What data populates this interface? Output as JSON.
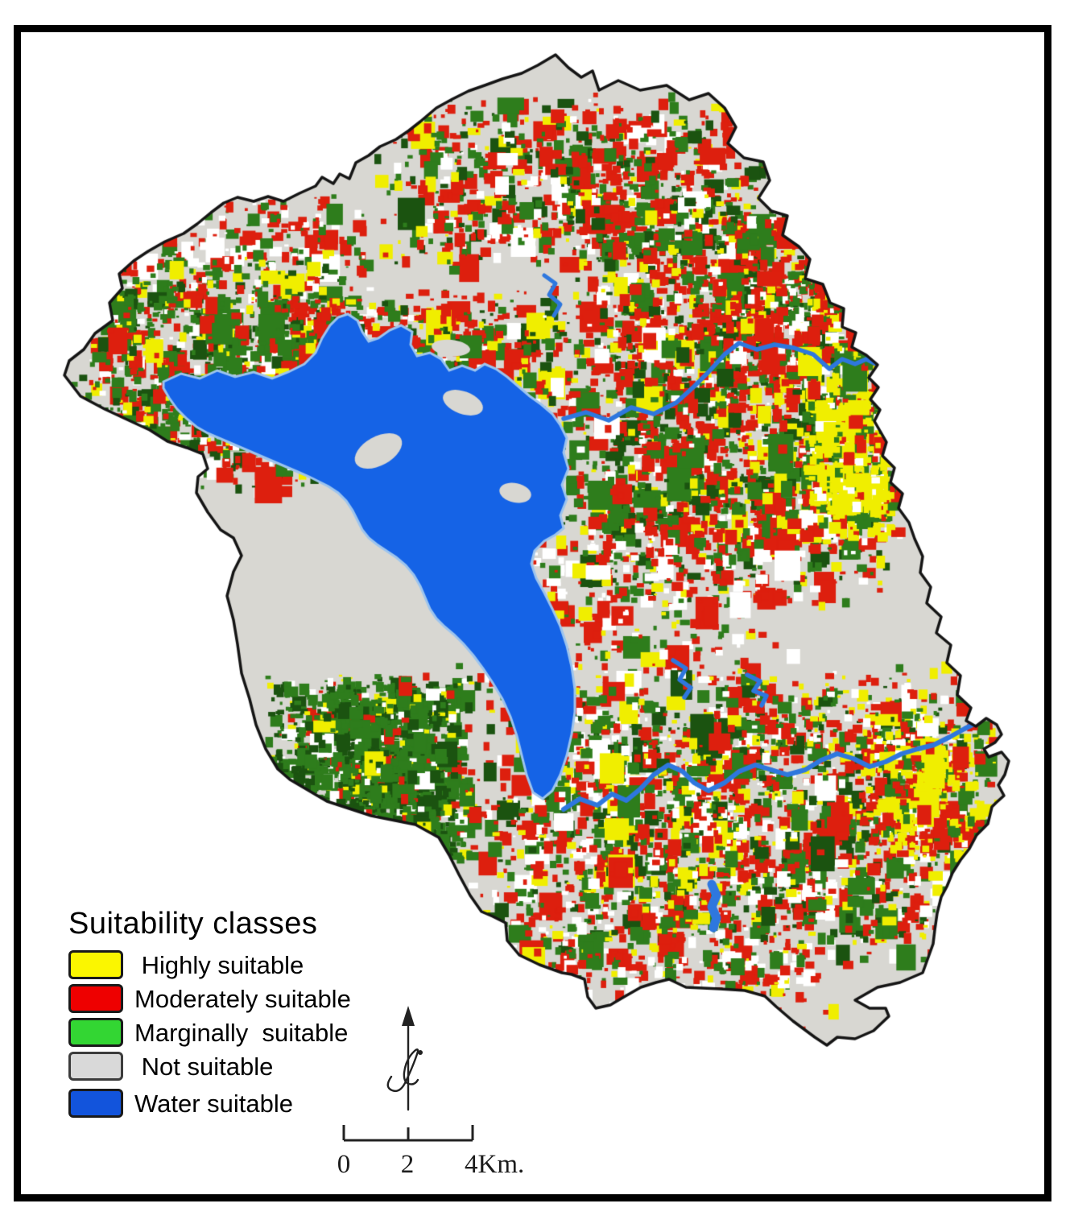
{
  "legend": {
    "title": "Suitability classes",
    "items": [
      {
        "id": "highly",
        "label": " Highly suitable",
        "color": "#FBF600",
        "border": "#1a1a1a"
      },
      {
        "id": "moderately",
        "label": "Moderately suitable",
        "color": "#EE0000",
        "border": "#1a1a1a"
      },
      {
        "id": "marginally",
        "label": "Marginally  suitable",
        "color": "#33D633",
        "border": "#1a1a1a"
      },
      {
        "id": "not",
        "label": " Not suitable",
        "color": "#D9D9D9",
        "border": "#3c3c3c"
      },
      {
        "id": "water",
        "label": "Water suitable",
        "color": "#1254DC",
        "border": "#1a1a1a"
      }
    ]
  },
  "scale_bar": {
    "tick_labels": [
      "0",
      "2",
      "4Km."
    ]
  },
  "map_palette": {
    "background": "#FFFFFF",
    "frame": "#000000",
    "base_not_suitable": "#D8D7D2",
    "highly_suitable": "#F0EE00",
    "moderately_suitable": "#DD1F0E",
    "marginally_suitable": "#2E7D1C",
    "marginally_dark": "#1B5310",
    "water": "#1563E6",
    "water_edge": "#9CC4EE",
    "river": "#2E77DE",
    "boundary": "#151515",
    "speckle_white": "#FFFFFF"
  }
}
